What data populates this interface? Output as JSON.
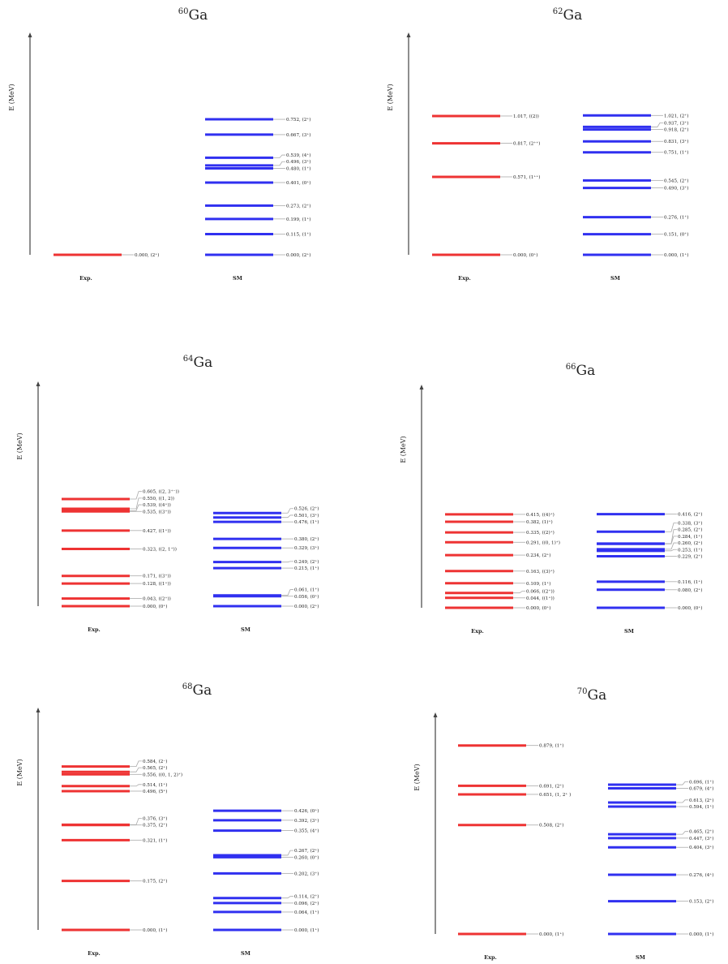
{
  "colors": {
    "exp": "#ee3333",
    "sm": "#3030f0",
    "connector": "#aaaaaa",
    "axis": "#444444"
  },
  "chart_data": [
    {
      "type": "level-scheme",
      "title": {
        "mass": "60",
        "element": "Ga"
      },
      "ylabel": "E (MeV)",
      "columns": [
        "Exp.",
        "SM"
      ],
      "ylim": [
        0,
        1.0
      ],
      "exp": [
        {
          "energy": 0.0,
          "label": "0.000, (2⁺)"
        }
      ],
      "sm": [
        {
          "energy": 0.0,
          "label": "0.000, (2⁺)"
        },
        {
          "energy": 0.115,
          "label": "0.115, (1⁺)"
        },
        {
          "energy": 0.199,
          "label": "0.199, (1⁺)"
        },
        {
          "energy": 0.273,
          "label": "0.273, (2⁺)"
        },
        {
          "energy": 0.401,
          "label": "0.401, (0⁺)"
        },
        {
          "energy": 0.48,
          "label": "0.480, (1⁺)"
        },
        {
          "energy": 0.496,
          "label": "0.496, (3⁺)"
        },
        {
          "energy": 0.539,
          "label": "0.539, (4⁺)"
        },
        {
          "energy": 0.667,
          "label": "0.667, (3⁺)"
        },
        {
          "energy": 0.752,
          "label": "0.752, (2⁺)"
        }
      ]
    },
    {
      "type": "level-scheme",
      "title": {
        "mass": "62",
        "element": "Ga"
      },
      "ylabel": "E (MeV)",
      "columns": [
        "Exp.",
        "SM"
      ],
      "ylim": [
        0,
        1.32
      ],
      "exp": [
        {
          "energy": 0.0,
          "label": "0.000, (0⁺)"
        },
        {
          "energy": 0.571,
          "label": "0.571, (1⁺⁺)"
        },
        {
          "energy": 0.817,
          "label": "0.817, (2⁺⁺)"
        },
        {
          "energy": 1.017,
          "label": "1.017, ((2))"
        }
      ],
      "sm": [
        {
          "energy": 0.0,
          "label": "0.000, (1⁺)"
        },
        {
          "energy": 0.151,
          "label": "0.151, (0⁺)"
        },
        {
          "energy": 0.276,
          "label": "0.276, (1⁺)"
        },
        {
          "energy": 0.49,
          "label": "0.490, (3⁺)"
        },
        {
          "energy": 0.545,
          "label": "0.545, (2⁺)"
        },
        {
          "energy": 0.751,
          "label": "0.751, (1⁺)"
        },
        {
          "energy": 0.831,
          "label": "0.831, (3⁺)"
        },
        {
          "energy": 0.918,
          "label": "0.918, (2⁺)"
        },
        {
          "energy": 0.937,
          "label": "0.937, (3⁺)"
        },
        {
          "energy": 1.021,
          "label": "1.021, (2⁺)"
        }
      ]
    },
    {
      "type": "level-scheme",
      "title": {
        "mass": "64",
        "element": "Ga"
      },
      "ylabel": "E (MeV)",
      "columns": [
        "Exp.",
        "SM"
      ],
      "ylim": [
        0,
        0.88
      ],
      "exp": [
        {
          "energy": 0.0,
          "label": "0.000, (0⁺)"
        },
        {
          "energy": 0.043,
          "label": "0.043, ((2⁺))"
        },
        {
          "energy": 0.128,
          "label": "0.128, ((1⁺))"
        },
        {
          "energy": 0.171,
          "label": "0.171, ((3⁺))"
        },
        {
          "energy": 0.323,
          "label": "0.323, ((2, 1⁺))"
        },
        {
          "energy": 0.427,
          "label": "0.427, ((1⁺))"
        },
        {
          "energy": 0.535,
          "label": "0.535, ((3⁺))"
        },
        {
          "energy": 0.539,
          "label": "0.539, ((4⁺))"
        },
        {
          "energy": 0.55,
          "label": "0.550, ((1, 2))"
        },
        {
          "energy": 0.605,
          "label": "0.605, ((2, 3⁺⁻))"
        }
      ],
      "sm": [
        {
          "energy": 0.0,
          "label": "0.000, (2⁺)"
        },
        {
          "energy": 0.056,
          "label": "0.056, (0⁺)"
        },
        {
          "energy": 0.061,
          "label": "0.061, (1⁺)"
        },
        {
          "energy": 0.215,
          "label": "0.215, (1⁺)"
        },
        {
          "energy": 0.249,
          "label": "0.249, (2⁺)"
        },
        {
          "energy": 0.329,
          "label": "0.329, (3⁺)"
        },
        {
          "energy": 0.38,
          "label": "0.380, (2⁺)"
        },
        {
          "energy": 0.476,
          "label": "0.476, (1⁺)"
        },
        {
          "energy": 0.501,
          "label": "0.501, (3⁺)"
        },
        {
          "energy": 0.526,
          "label": "0.526, (2⁺)"
        }
      ]
    },
    {
      "type": "level-scheme",
      "title": {
        "mass": "66",
        "element": "Ga"
      },
      "ylabel": "E (MeV)",
      "columns": [
        "Exp.",
        "SM"
      ],
      "ylim": [
        0,
        0.62
      ],
      "exp": [
        {
          "energy": 0.0,
          "label": "0.000, (0⁺)"
        },
        {
          "energy": 0.044,
          "label": "0.044, ((1⁺))"
        },
        {
          "energy": 0.066,
          "label": "0.066, ((2⁺))"
        },
        {
          "energy": 0.109,
          "label": "0.109, (1⁺)"
        },
        {
          "energy": 0.163,
          "label": "0.163, ((3)⁺)"
        },
        {
          "energy": 0.234,
          "label": "0.234, (2⁺)"
        },
        {
          "energy": 0.291,
          "label": "0.291, ((0, 1)⁺)"
        },
        {
          "energy": 0.335,
          "label": "0.335, ((2)⁺)"
        },
        {
          "energy": 0.382,
          "label": "0.382, (1)⁺)"
        },
        {
          "energy": 0.415,
          "label": "0.415, ((4)⁺)"
        }
      ],
      "sm": [
        {
          "energy": 0.0,
          "label": "0.000, (0⁺)"
        },
        {
          "energy": 0.08,
          "label": "0.080, (2⁺)"
        },
        {
          "energy": 0.116,
          "label": "0.116, (1⁺)"
        },
        {
          "energy": 0.229,
          "label": "0.229, (2⁺)"
        },
        {
          "energy": 0.253,
          "label": "0.253, (1⁺)"
        },
        {
          "energy": 0.26,
          "label": "0.260, (2⁺)"
        },
        {
          "energy": 0.284,
          "label": "0.284, (1⁺)"
        },
        {
          "energy": 0.285,
          "label": "0.285, (2⁺)"
        },
        {
          "energy": 0.338,
          "label": "0.338, (3⁺)"
        },
        {
          "energy": 0.416,
          "label": "0.416, (2⁺)"
        }
      ]
    },
    {
      "type": "level-scheme",
      "title": {
        "mass": "68",
        "element": "Ga"
      },
      "ylabel": "E (MeV)",
      "columns": [
        "Exp.",
        "SM"
      ],
      "ylim": [
        0,
        0.67
      ],
      "exp": [
        {
          "energy": 0.0,
          "label": "0.000, (1⁺)"
        },
        {
          "energy": 0.175,
          "label": "0.175, (2⁺)"
        },
        {
          "energy": 0.321,
          "label": "0.321, (1⁺)"
        },
        {
          "energy": 0.375,
          "label": "0.375, (2⁺)"
        },
        {
          "energy": 0.376,
          "label": "0.376, (3⁺)"
        },
        {
          "energy": 0.496,
          "label": "0.496, (5⁺)"
        },
        {
          "energy": 0.514,
          "label": "0.514, (1⁺)"
        },
        {
          "energy": 0.556,
          "label": "0.556, ((0, 1, 2)⁺)"
        },
        {
          "energy": 0.565,
          "label": "0.565, (2⁺)"
        },
        {
          "energy": 0.584,
          "label": "0.584, (2⁻)"
        }
      ],
      "sm": [
        {
          "energy": 0.0,
          "label": "0.000, (1⁺)"
        },
        {
          "energy": 0.064,
          "label": "0.064, (1⁺)"
        },
        {
          "energy": 0.096,
          "label": "0.096, (2⁺)"
        },
        {
          "energy": 0.114,
          "label": "0.114, (2⁺)"
        },
        {
          "energy": 0.202,
          "label": "0.202, (3⁺)"
        },
        {
          "energy": 0.26,
          "label": "0.260, (0⁺)"
        },
        {
          "energy": 0.267,
          "label": "0.267, (2⁺)"
        },
        {
          "energy": 0.355,
          "label": "0.355, (4⁺)"
        },
        {
          "energy": 0.392,
          "label": "0.392, (3⁺)"
        },
        {
          "energy": 0.426,
          "label": "0.426, (0⁺)"
        }
      ]
    },
    {
      "type": "level-scheme",
      "title": {
        "mass": "70",
        "element": "Ga"
      },
      "ylabel": "E (MeV)",
      "columns": [
        "Exp.",
        "SM"
      ],
      "ylim": [
        0,
        0.98
      ],
      "exp": [
        {
          "energy": 0.0,
          "label": "0.000, (1⁺)"
        },
        {
          "energy": 0.508,
          "label": "0.508, (2⁺)"
        },
        {
          "energy": 0.651,
          "label": "0.651, (1, 2⁺ )"
        },
        {
          "energy": 0.691,
          "label": "0.691, (2⁺)"
        },
        {
          "energy": 0.879,
          "label": "0.879, (1⁺)"
        }
      ],
      "sm": [
        {
          "energy": 0.0,
          "label": "0.000, (1⁺)"
        },
        {
          "energy": 0.153,
          "label": "0.153, (2⁺)"
        },
        {
          "energy": 0.276,
          "label": "0.276, (4⁺)"
        },
        {
          "energy": 0.404,
          "label": "0.404, (3⁺)"
        },
        {
          "energy": 0.447,
          "label": "0.447, (3⁺)"
        },
        {
          "energy": 0.465,
          "label": "0.465, (2⁺)"
        },
        {
          "energy": 0.594,
          "label": "0.594, (1⁺)"
        },
        {
          "energy": 0.613,
          "label": "0.613, (2⁺)"
        },
        {
          "energy": 0.679,
          "label": "0.679, (4⁺)"
        },
        {
          "energy": 0.696,
          "label": "0.696, (1⁺)"
        }
      ]
    }
  ]
}
